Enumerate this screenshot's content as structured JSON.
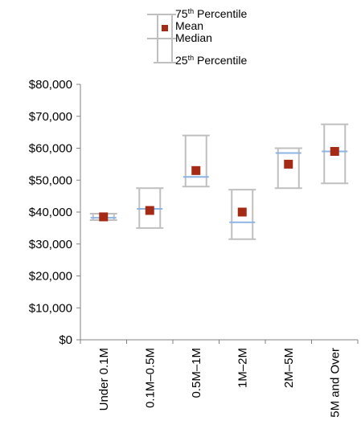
{
  "chart_data": {
    "type": "box",
    "title": "",
    "xlabel": "",
    "ylabel": "",
    "ylim": [
      0,
      80000
    ],
    "yticks": [
      "$0",
      "$10,000",
      "$20,000",
      "$30,000",
      "$40,000",
      "$50,000",
      "$60,000",
      "$70,000",
      "$80,000"
    ],
    "categories": [
      "Under 0.1M",
      "0.1M–0.5M",
      "0.5M–1M",
      "1M–2M",
      "2M–5M",
      "5M and Over"
    ],
    "series": [
      {
        "name": "75th Percentile",
        "values": [
          39500,
          47500,
          64000,
          47000,
          60000,
          67500
        ]
      },
      {
        "name": "Mean",
        "values": [
          38500,
          40500,
          53000,
          40000,
          55000,
          59000
        ]
      },
      {
        "name": "Median",
        "values": [
          38200,
          41000,
          51000,
          36800,
          58500,
          59000
        ]
      },
      {
        "name": "25th Percentile",
        "values": [
          37500,
          35000,
          48000,
          31500,
          47500,
          49000
        ]
      }
    ],
    "legend": {
      "position": "top-center",
      "items": [
        {
          "base": "75",
          "sup": "th",
          "rest": " Percentile"
        },
        {
          "base": "Mean",
          "sup": "",
          "rest": ""
        },
        {
          "base": "Median",
          "sup": "",
          "rest": ""
        },
        {
          "base": "25",
          "sup": "th",
          "rest": " Percentile"
        }
      ]
    },
    "colors": {
      "whisker": "#bfbfbf",
      "median": "#8eb4e3",
      "mean": "#a52a16",
      "axis": "#808080"
    },
    "grid": false
  }
}
